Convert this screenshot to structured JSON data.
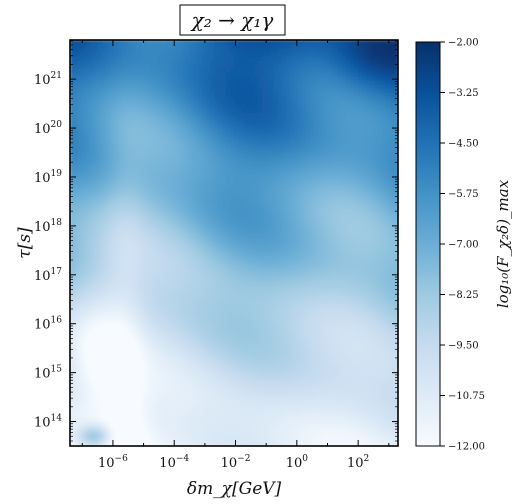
{
  "chart_data": {
    "type": "heatmap",
    "title": "χ₂ → χ₁γ",
    "xlabel": "δm_χ[GeV]",
    "ylabel": "τ[s]",
    "x_scale": "log",
    "y_scale": "log",
    "xlim_log10": [
      -7.4,
      3.3
    ],
    "ylim_log10": [
      13.5,
      21.8
    ],
    "x_ticks": [
      {
        "exp": -6,
        "label": "10−6"
      },
      {
        "exp": -4,
        "label": "10−4"
      },
      {
        "exp": -2,
        "label": "10−2"
      },
      {
        "exp": 0,
        "label": "100"
      },
      {
        "exp": 2,
        "label": "102"
      }
    ],
    "y_ticks": [
      {
        "exp": 14,
        "label": "1014"
      },
      {
        "exp": 15,
        "label": "1015"
      },
      {
        "exp": 16,
        "label": "1016"
      },
      {
        "exp": 17,
        "label": "1017"
      },
      {
        "exp": 18,
        "label": "1018"
      },
      {
        "exp": 19,
        "label": "1019"
      },
      {
        "exp": 20,
        "label": "1020"
      },
      {
        "exp": 21,
        "label": "1021"
      }
    ],
    "colorbar": {
      "label": "log₁₀(F_χ₂δ)_max",
      "ticks": [
        "−2.00",
        "−3.25",
        "−4.50",
        "−5.75",
        "−7.00",
        "−8.25",
        "−9.50",
        "−10.75",
        "−12.00"
      ],
      "min": -12.0,
      "max": -2.0,
      "cmap": [
        "#f7fbff",
        "#deebf7",
        "#c6dbef",
        "#9ecae1",
        "#6baed6",
        "#4292c6",
        "#2171b5",
        "#08519c",
        "#08306b"
      ]
    }
  }
}
